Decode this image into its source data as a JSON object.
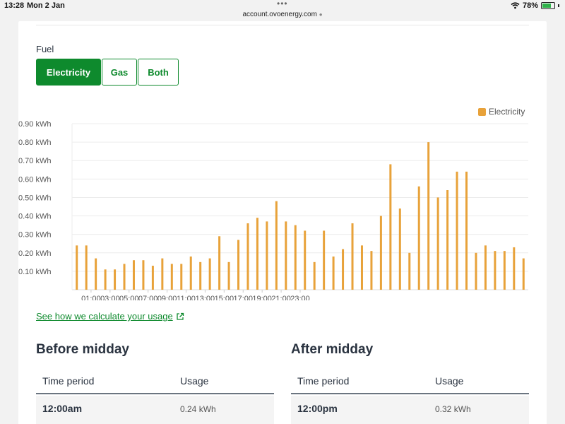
{
  "status_bar": {
    "time": "13:28",
    "date": "Mon 2 Jan",
    "url": "account.ovoenergy.com",
    "battery": "78%",
    "battery_level": 0.78
  },
  "fuel": {
    "label": "Fuel",
    "options": [
      "Electricity",
      "Gas",
      "Both"
    ],
    "selected": "Electricity"
  },
  "colors": {
    "brand_green": "#0e8a2d",
    "bar_orange": "#e8a23a"
  },
  "chart_data": {
    "type": "bar",
    "legend": "Electricity",
    "legend_position": "top-right",
    "ylim": [
      0,
      0.9
    ],
    "y_ticks": [
      "0.90 kWh",
      "0.80 kWh",
      "0.70 kWh",
      "0.60 kWh",
      "0.50 kWh",
      "0.40 kWh",
      "0.30 kWh",
      "0.20 kWh",
      "0.10 kWh"
    ],
    "x_ticks": [
      "01:00",
      "03:00",
      "05:00",
      "07:00",
      "09:00",
      "11:00",
      "13:00",
      "15:00",
      "17:00",
      "19:00",
      "21:00",
      "23:00"
    ],
    "grid": true,
    "values": [
      0.24,
      0.24,
      0.17,
      0.11,
      0.11,
      0.14,
      0.16,
      0.16,
      0.13,
      0.17,
      0.14,
      0.14,
      0.18,
      0.15,
      0.17,
      0.29,
      0.15,
      0.27,
      0.36,
      0.39,
      0.37,
      0.48,
      0.37,
      0.35,
      0.32,
      0.15,
      0.32,
      0.18,
      0.22,
      0.36,
      0.24,
      0.21,
      0.4,
      0.68,
      0.44,
      0.2,
      0.56,
      0.8,
      0.5,
      0.54,
      0.64,
      0.64,
      0.2,
      0.24,
      0.21,
      0.21,
      0.23,
      0.17
    ]
  },
  "link": {
    "text": "See how we calculate your usage"
  },
  "before_midday": {
    "title": "Before midday",
    "col_time": "Time period",
    "col_usage": "Usage",
    "rows": [
      {
        "time": "12:00am",
        "usage": "0.24 kWh"
      }
    ]
  },
  "after_midday": {
    "title": "After midday",
    "col_time": "Time period",
    "col_usage": "Usage",
    "rows": [
      {
        "time": "12:00pm",
        "usage": "0.32 kWh"
      }
    ]
  }
}
